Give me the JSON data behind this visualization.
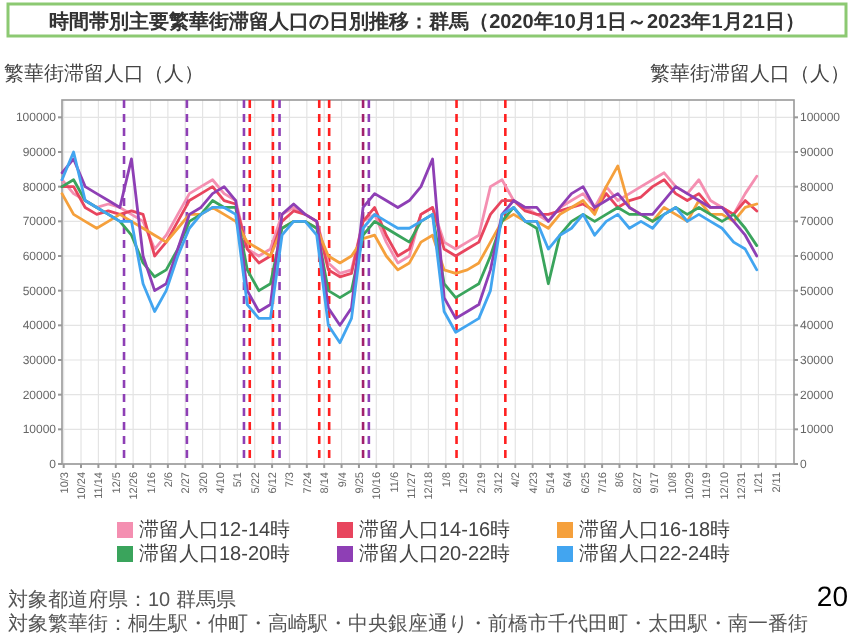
{
  "chart_data": {
    "type": "line",
    "title": "時間帯別主要繁華街滞留人口の日別推移：群馬（2020年10月1日～2023年1月21日）",
    "ylabel": "繁華街滞留人口（人）",
    "y2label": "繁華街滞留人口（人）",
    "x": [
      "2020-10-01",
      "2020-10-15",
      "2020-10-29",
      "2020-11-12",
      "2020-11-26",
      "2020-12-10",
      "2020-12-24",
      "2021-01-07",
      "2021-01-21",
      "2021-02-04",
      "2021-02-18",
      "2021-03-04",
      "2021-03-18",
      "2021-04-01",
      "2021-04-15",
      "2021-04-29",
      "2021-05-13",
      "2021-05-27",
      "2021-06-10",
      "2021-06-24",
      "2021-07-08",
      "2021-07-22",
      "2021-08-05",
      "2021-08-19",
      "2021-09-02",
      "2021-09-16",
      "2021-09-30",
      "2021-10-14",
      "2021-10-28",
      "2021-11-11",
      "2021-11-25",
      "2021-12-09",
      "2021-12-23",
      "2022-01-06",
      "2022-01-20",
      "2022-02-03",
      "2022-02-17",
      "2022-03-03",
      "2022-03-17",
      "2022-03-31",
      "2022-04-14",
      "2022-04-28",
      "2022-05-12",
      "2022-05-26",
      "2022-06-09",
      "2022-06-23",
      "2022-07-07",
      "2022-07-21",
      "2022-08-04",
      "2022-08-18",
      "2022-09-01",
      "2022-09-15",
      "2022-09-29",
      "2022-10-13",
      "2022-10-27",
      "2022-11-10",
      "2022-11-24",
      "2022-12-08",
      "2022-12-22",
      "2023-01-05",
      "2023-01-19"
    ],
    "series": [
      {
        "name": "滞留人口12-14時",
        "color": "#f48fb1",
        "values": [
          82000,
          78000,
          76000,
          74000,
          75000,
          74000,
          72000,
          70000,
          62000,
          66000,
          72000,
          78000,
          80000,
          82000,
          78000,
          76000,
          62000,
          60000,
          62000,
          72000,
          74000,
          72000,
          70000,
          58000,
          55000,
          56000,
          70000,
          72000,
          64000,
          58000,
          60000,
          72000,
          74000,
          64000,
          62000,
          64000,
          66000,
          80000,
          82000,
          76000,
          74000,
          72000,
          70000,
          74000,
          76000,
          78000,
          74000,
          80000,
          76000,
          78000,
          80000,
          82000,
          84000,
          80000,
          78000,
          82000,
          76000,
          74000,
          72000,
          78000,
          83000
        ]
      },
      {
        "name": "滞留人口14-16時",
        "color": "#e8455e",
        "values": [
          80000,
          80000,
          74000,
          72000,
          73000,
          72000,
          73000,
          72000,
          60000,
          64000,
          70000,
          76000,
          78000,
          80000,
          76000,
          75000,
          62000,
          58000,
          60000,
          70000,
          73000,
          72000,
          70000,
          56000,
          54000,
          55000,
          70000,
          74000,
          66000,
          60000,
          62000,
          72000,
          74000,
          62000,
          60000,
          62000,
          64000,
          72000,
          76000,
          76000,
          73000,
          72000,
          72000,
          73000,
          74000,
          75000,
          73000,
          78000,
          74000,
          76000,
          77000,
          80000,
          82000,
          78000,
          76000,
          78000,
          74000,
          74000,
          72000,
          76000,
          73000
        ]
      },
      {
        "name": "滞留人口16-18時",
        "color": "#f5a03c",
        "values": [
          78000,
          72000,
          70000,
          68000,
          70000,
          72000,
          70000,
          68000,
          66000,
          64000,
          68000,
          72000,
          72000,
          74000,
          72000,
          70000,
          64000,
          62000,
          60000,
          68000,
          70000,
          70000,
          68000,
          60000,
          58000,
          60000,
          65000,
          66000,
          60000,
          56000,
          58000,
          64000,
          66000,
          56000,
          55000,
          56000,
          58000,
          64000,
          70000,
          72000,
          70000,
          70000,
          68000,
          72000,
          74000,
          76000,
          72000,
          80000,
          86000,
          74000,
          72000,
          70000,
          74000,
          72000,
          70000,
          76000,
          72000,
          72000,
          70000,
          74000,
          75000
        ]
      },
      {
        "name": "滞留人口18-20時",
        "color": "#3aa45c",
        "values": [
          80000,
          82000,
          76000,
          74000,
          72000,
          70000,
          66000,
          58000,
          54000,
          56000,
          62000,
          70000,
          72000,
          76000,
          74000,
          74000,
          56000,
          50000,
          52000,
          68000,
          70000,
          70000,
          68000,
          50000,
          48000,
          50000,
          66000,
          70000,
          68000,
          66000,
          64000,
          70000,
          72000,
          52000,
          48000,
          50000,
          52000,
          60000,
          70000,
          74000,
          70000,
          68000,
          52000,
          66000,
          70000,
          72000,
          70000,
          72000,
          74000,
          72000,
          72000,
          70000,
          72000,
          74000,
          72000,
          74000,
          72000,
          70000,
          72000,
          68000,
          63000
        ]
      },
      {
        "name": "滞留人口20-22時",
        "color": "#8e3fb5",
        "values": [
          84000,
          88000,
          80000,
          78000,
          76000,
          74000,
          88000,
          60000,
          50000,
          52000,
          62000,
          72000,
          74000,
          78000,
          80000,
          76000,
          50000,
          44000,
          46000,
          72000,
          75000,
          72000,
          70000,
          45000,
          40000,
          45000,
          74000,
          78000,
          76000,
          74000,
          76000,
          80000,
          88000,
          48000,
          42000,
          44000,
          46000,
          56000,
          72000,
          76000,
          74000,
          74000,
          70000,
          74000,
          78000,
          80000,
          74000,
          76000,
          78000,
          74000,
          72000,
          72000,
          76000,
          80000,
          78000,
          76000,
          74000,
          74000,
          70000,
          66000,
          60000
        ]
      },
      {
        "name": "滞留人口22-24時",
        "color": "#42a5f0",
        "values": [
          82000,
          90000,
          76000,
          74000,
          72000,
          70000,
          70000,
          52000,
          44000,
          50000,
          60000,
          68000,
          72000,
          74000,
          74000,
          72000,
          46000,
          42000,
          42000,
          66000,
          70000,
          70000,
          66000,
          40000,
          35000,
          42000,
          68000,
          72000,
          70000,
          68000,
          68000,
          70000,
          72000,
          44000,
          38000,
          40000,
          42000,
          50000,
          72000,
          74000,
          70000,
          70000,
          62000,
          66000,
          68000,
          72000,
          66000,
          70000,
          72000,
          68000,
          70000,
          68000,
          72000,
          74000,
          70000,
          72000,
          70000,
          68000,
          64000,
          62000,
          56000
        ]
      }
    ],
    "xlim": [
      "2020-10-01",
      "2023-03-05"
    ],
    "xticks": [
      {
        "value": "2020-10-03",
        "label": "10/3"
      },
      {
        "value": "2020-10-24",
        "label": "10/24"
      },
      {
        "value": "2020-11-14",
        "label": "11/14"
      },
      {
        "value": "2020-12-05",
        "label": "12/5"
      },
      {
        "value": "2020-12-26",
        "label": "12/26"
      },
      {
        "value": "2021-01-16",
        "label": "1/16"
      },
      {
        "value": "2021-02-06",
        "label": "2/6"
      },
      {
        "value": "2021-02-27",
        "label": "2/27"
      },
      {
        "value": "2021-03-20",
        "label": "3/20"
      },
      {
        "value": "2021-04-10",
        "label": "4/10"
      },
      {
        "value": "2021-05-01",
        "label": "5/1"
      },
      {
        "value": "2021-05-22",
        "label": "5/22"
      },
      {
        "value": "2021-06-12",
        "label": "6/12"
      },
      {
        "value": "2021-07-03",
        "label": "7/3"
      },
      {
        "value": "2021-07-24",
        "label": "7/24"
      },
      {
        "value": "2021-08-14",
        "label": "8/14"
      },
      {
        "value": "2021-09-04",
        "label": "9/4"
      },
      {
        "value": "2021-09-25",
        "label": "9/25"
      },
      {
        "value": "2021-10-16",
        "label": "10/16"
      },
      {
        "value": "2021-11-06",
        "label": "11/6"
      },
      {
        "value": "2021-11-27",
        "label": "11/27"
      },
      {
        "value": "2021-12-18",
        "label": "12/18"
      },
      {
        "value": "2022-01-08",
        "label": "1/8"
      },
      {
        "value": "2022-01-29",
        "label": "1/29"
      },
      {
        "value": "2022-02-19",
        "label": "2/19"
      },
      {
        "value": "2022-03-12",
        "label": "3/12"
      },
      {
        "value": "2022-04-02",
        "label": "4/2"
      },
      {
        "value": "2022-04-23",
        "label": "4/23"
      },
      {
        "value": "2022-05-14",
        "label": "5/14"
      },
      {
        "value": "2022-06-04",
        "label": "6/4"
      },
      {
        "value": "2022-06-25",
        "label": "6/25"
      },
      {
        "value": "2022-07-16",
        "label": "7/16"
      },
      {
        "value": "2022-08-06",
        "label": "8/6"
      },
      {
        "value": "2022-08-27",
        "label": "8/27"
      },
      {
        "value": "2022-09-17",
        "label": "9/17"
      },
      {
        "value": "2022-10-08",
        "label": "10/8"
      },
      {
        "value": "2022-10-29",
        "label": "10/29"
      },
      {
        "value": "2022-11-19",
        "label": "11/19"
      },
      {
        "value": "2022-12-10",
        "label": "12/10"
      },
      {
        "value": "2022-12-31",
        "label": "12/31"
      },
      {
        "value": "2023-01-21",
        "label": "1/21"
      },
      {
        "value": "2023-02-11",
        "label": "2/11"
      }
    ],
    "ylim": [
      0,
      105000
    ],
    "yticks": [
      0,
      10000,
      20000,
      30000,
      40000,
      50000,
      60000,
      70000,
      80000,
      90000,
      100000
    ],
    "y2lim": [
      0,
      105000
    ],
    "y2ticks": [
      0,
      10000,
      20000,
      30000,
      40000,
      50000,
      60000,
      70000,
      80000,
      90000,
      100000
    ],
    "ref_lines": [
      {
        "axis": "x",
        "value": "2020-12-15",
        "color": "#8e3fb5",
        "line_style": "dashed"
      },
      {
        "axis": "x",
        "value": "2021-03-01",
        "color": "#8e3fb5",
        "line_style": "dashed"
      },
      {
        "axis": "x",
        "value": "2021-05-09",
        "color": "#8e3fb5",
        "line_style": "dashed"
      },
      {
        "axis": "x",
        "value": "2021-05-16",
        "color": "#ff2020",
        "line_style": "dashed"
      },
      {
        "axis": "x",
        "value": "2021-06-13",
        "color": "#ff2020",
        "line_style": "dashed"
      },
      {
        "axis": "x",
        "value": "2021-06-21",
        "color": "#8e3fb5",
        "line_style": "dashed"
      },
      {
        "axis": "x",
        "value": "2021-08-08",
        "color": "#ff2020",
        "line_style": "dashed"
      },
      {
        "axis": "x",
        "value": "2021-08-20",
        "color": "#ff2020",
        "line_style": "dashed"
      },
      {
        "axis": "x",
        "value": "2021-09-30",
        "color": "#a0206e",
        "line_style": "dashed"
      },
      {
        "axis": "x",
        "value": "2021-10-07",
        "color": "#8e3fb5",
        "line_style": "dashed"
      },
      {
        "axis": "x",
        "value": "2022-01-21",
        "color": "#ff2020",
        "line_style": "dashed"
      },
      {
        "axis": "x",
        "value": "2022-03-21",
        "color": "#ff2020",
        "line_style": "dashed"
      }
    ],
    "annotations": [
      "対象都道府県：10 群馬県",
      "対象繁華街：桐生駅・仲町・高崎駅・中央銀座通り・前橋市千代田町・太田駅・南一番街",
      "20"
    ],
    "grid": true,
    "legend": "bottom",
    "marker": "none",
    "line_style": "solid"
  }
}
